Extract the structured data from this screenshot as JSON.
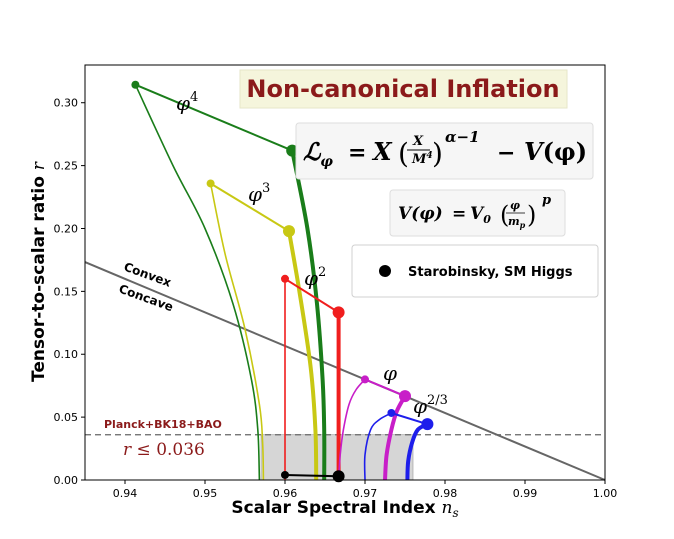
{
  "chart_data": {
    "type": "line",
    "title": "Non-canonical Inflation",
    "xlabel": "Scalar Spectral Index",
    "xlabel_symbol": "n",
    "xlabel_sub": "s",
    "ylabel": "Tensor-to-scalar ratio",
    "ylabel_symbol": "r",
    "xlim": [
      0.935,
      1.0
    ],
    "ylim": [
      0.0,
      0.33
    ],
    "xticks": [
      "0.94",
      "0.95",
      "0.96",
      "0.97",
      "0.98",
      "0.99",
      "1.00"
    ],
    "yticks": [
      "0.00",
      "0.05",
      "0.10",
      "0.15",
      "0.20",
      "0.25",
      "0.30"
    ],
    "xtick_values": [
      0.94,
      0.95,
      0.96,
      0.97,
      0.98,
      0.99,
      1.0
    ],
    "ytick_values": [
      0.0,
      0.05,
      0.1,
      0.15,
      0.2,
      0.25,
      0.3
    ],
    "colors": {
      "phi4": "#1a7d1a",
      "phi3": "#c8c814",
      "phi2": "#f01e1e",
      "phi": "#c81ec8",
      "phi23": "#1e1eeb",
      "starobinsky": "#000000",
      "convexity_line": "#666666",
      "bound_line": "#666666",
      "bound_region": "#d6d6d6",
      "title_color": "#8b1a1a",
      "title_bg": "#f5f5dc",
      "bound_label_color": "#8b1a1a"
    },
    "series": [
      {
        "name": "phi4",
        "label_base": "φ",
        "label_exp": "4",
        "color_key": "phi4",
        "connector": [
          [
            0.9413,
            0.3143
          ],
          [
            0.9609,
            0.2619
          ]
        ],
        "thin": [
          [
            0.9413,
            0.3143
          ],
          [
            0.946,
            0.25
          ],
          [
            0.95,
            0.2
          ],
          [
            0.9535,
            0.14
          ],
          [
            0.9558,
            0.08
          ],
          [
            0.9566,
            0.04
          ],
          [
            0.9568,
            0.0
          ]
        ],
        "thick": [
          [
            0.9609,
            0.2619
          ],
          [
            0.9628,
            0.2
          ],
          [
            0.964,
            0.14
          ],
          [
            0.9647,
            0.08
          ],
          [
            0.9649,
            0.04
          ],
          [
            0.9649,
            0.0
          ]
        ],
        "end_small": [
          0.9413,
          0.3143
        ],
        "end_big": [
          0.9609,
          0.2619
        ]
      },
      {
        "name": "phi3",
        "label_base": "φ",
        "label_exp": "3",
        "color_key": "phi3",
        "connector": [
          [
            0.9507,
            0.2358
          ],
          [
            0.9605,
            0.1979
          ]
        ],
        "thin": [
          [
            0.9507,
            0.2358
          ],
          [
            0.9525,
            0.18
          ],
          [
            0.955,
            0.12
          ],
          [
            0.9568,
            0.06
          ],
          [
            0.9572,
            0.03
          ],
          [
            0.9573,
            0.0
          ]
        ],
        "thick": [
          [
            0.9605,
            0.1979
          ],
          [
            0.9618,
            0.15
          ],
          [
            0.9632,
            0.09
          ],
          [
            0.9638,
            0.04
          ],
          [
            0.9639,
            0.0
          ]
        ],
        "end_small": [
          0.9507,
          0.2358
        ],
        "end_big": [
          0.9605,
          0.1979
        ]
      },
      {
        "name": "phi2",
        "label_base": "φ",
        "label_exp": "2",
        "color_key": "phi2",
        "connector": [
          [
            0.96,
            0.16
          ],
          [
            0.9667,
            0.1333
          ]
        ],
        "thin": [
          [
            0.96,
            0.16
          ],
          [
            0.96,
            0.0
          ]
        ],
        "thick": [
          [
            0.9667,
            0.1333
          ],
          [
            0.9667,
            0.0
          ]
        ],
        "end_small": [
          0.96,
          0.16
        ],
        "end_big": [
          0.9667,
          0.1333
        ]
      },
      {
        "name": "phi",
        "label_base": "φ",
        "label_exp": "",
        "color_key": "phi",
        "connector": [
          [
            0.97,
            0.08
          ],
          [
            0.975,
            0.0667
          ]
        ],
        "thin": [
          [
            0.97,
            0.08
          ],
          [
            0.9689,
            0.072
          ],
          [
            0.968,
            0.06
          ],
          [
            0.9673,
            0.04
          ],
          [
            0.9669,
            0.02
          ],
          [
            0.9667,
            0.0
          ]
        ],
        "thick": [
          [
            0.975,
            0.0667
          ],
          [
            0.974,
            0.055
          ],
          [
            0.9733,
            0.04
          ],
          [
            0.9727,
            0.02
          ],
          [
            0.9725,
            0.0
          ]
        ],
        "end_small": [
          0.97,
          0.08
        ],
        "end_big": [
          0.975,
          0.0667
        ]
      },
      {
        "name": "phi23",
        "label_base": "φ",
        "label_exp": "2/3",
        "color_key": "phi23",
        "connector": [
          [
            0.9733,
            0.0533
          ],
          [
            0.9778,
            0.0444
          ]
        ],
        "thin": [
          [
            0.9733,
            0.0533
          ],
          [
            0.9718,
            0.048
          ],
          [
            0.9707,
            0.04
          ],
          [
            0.97,
            0.02
          ],
          [
            0.97,
            0.0
          ]
        ],
        "thick": [
          [
            0.9778,
            0.0444
          ],
          [
            0.9766,
            0.04
          ],
          [
            0.9759,
            0.03
          ],
          [
            0.9754,
            0.015
          ],
          [
            0.9753,
            0.0
          ]
        ],
        "end_small": [
          0.9733,
          0.0533
        ],
        "end_big": [
          0.9778,
          0.0444
        ]
      }
    ],
    "starobinsky": {
      "points": [
        [
          0.96,
          0.004
        ],
        [
          0.9667,
          0.003
        ]
      ],
      "legend_label": "Starobinsky, SM Higgs"
    },
    "convexity_line": {
      "points": [
        [
          0.935,
          0.1733
        ],
        [
          1.0,
          0.0
        ]
      ],
      "convex_label": "Convex",
      "concave_label": "Concave"
    },
    "observational_bound": {
      "r_max": 0.036,
      "region_x": [
        0.957,
        0.976
      ],
      "label": "Planck+BK18+BAO",
      "ineq_symbol": "r",
      "ineq_text": "≤ 0.036"
    },
    "annotations": {
      "lagrangian": {
        "lhs_base": "ℒ",
        "lhs_sub": "φ",
        "eq": "=",
        "X": "X",
        "frac_num": "X",
        "frac_den": "M",
        "frac_den_exp": "4",
        "exp": "α−1",
        "minus": "−",
        "V": "V",
        "arg": "(φ)"
      },
      "potential": {
        "lhs": "V(φ)",
        "eq": "=",
        "V0": "V",
        "V0_sub": "0",
        "frac_num": "φ",
        "frac_den": "m",
        "frac_den_sub": "p",
        "exp": "p"
      }
    }
  }
}
